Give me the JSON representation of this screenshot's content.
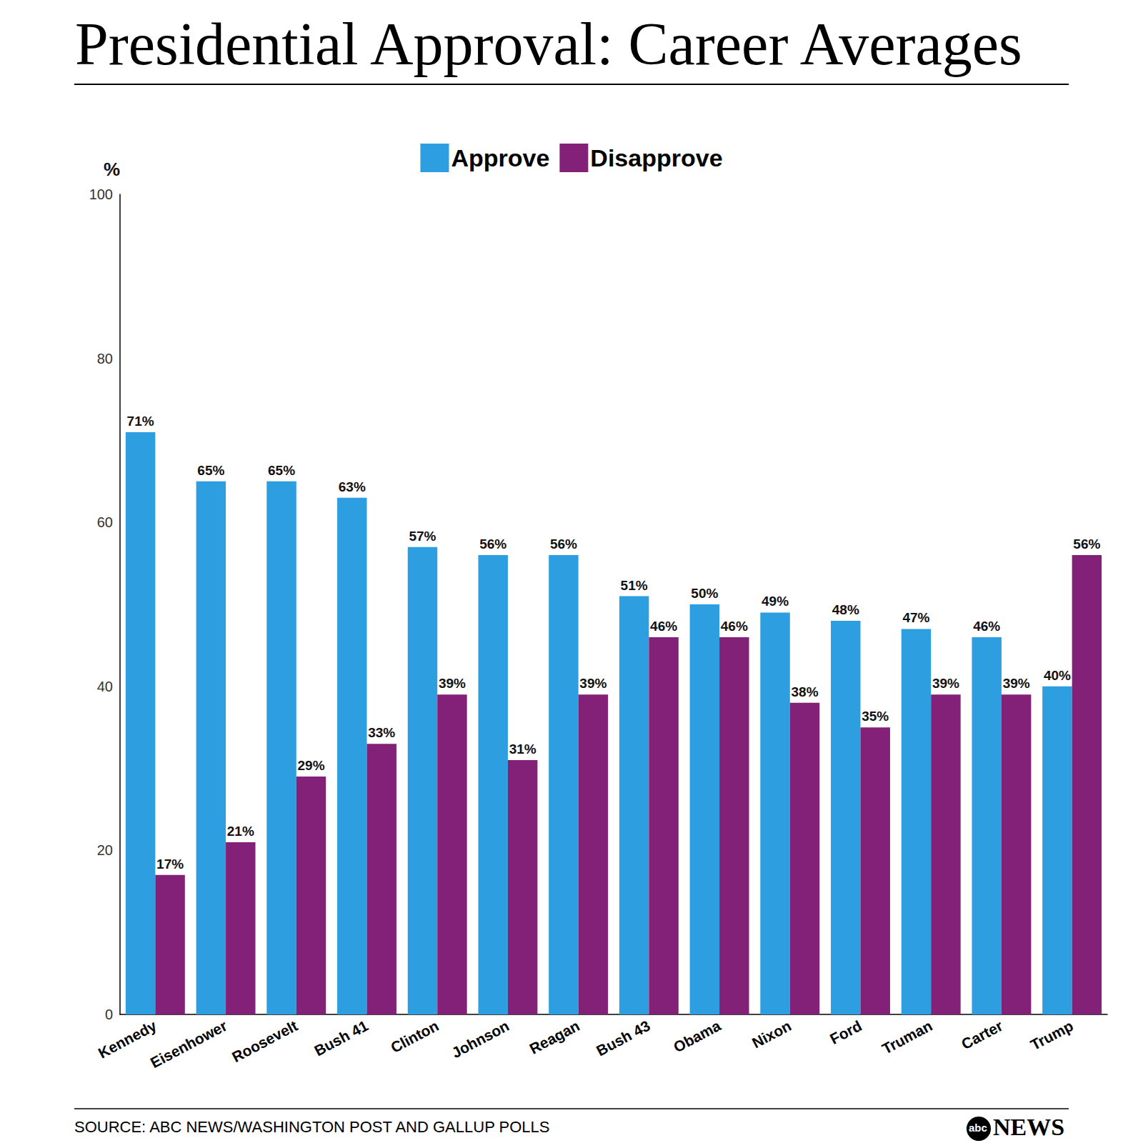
{
  "chart_data": {
    "type": "bar",
    "title": "Presidential Approval: Career Averages",
    "y_label": "%",
    "source": "SOURCE: ABC NEWS/WASHINGTON POST AND GALLUP POLLS",
    "logo_mark": "abc",
    "logo": "NEWS",
    "categories": [
      "Kennedy",
      "Eisenhower",
      "Roosevelt",
      "Bush 41",
      "Clinton",
      "Johnson",
      "Reagan",
      "Bush 43",
      "Obama",
      "Nixon",
      "Ford",
      "Truman",
      "Carter",
      "Trump"
    ],
    "series": [
      {
        "name": "Approve",
        "color": "#2d9ee0",
        "values": [
          71,
          65,
          65,
          63,
          57,
          56,
          56,
          51,
          50,
          49,
          48,
          47,
          46,
          40
        ],
        "value_labels": [
          "71%",
          "65%",
          "65%",
          "63%",
          "57%",
          "56%",
          "56%",
          "51%",
          "50%",
          "49%",
          "48%",
          "47%",
          "46%",
          "40%"
        ]
      },
      {
        "name": "Disapprove",
        "color": "#832077",
        "values": [
          17,
          21,
          29,
          33,
          39,
          31,
          39,
          46,
          46,
          38,
          35,
          39,
          39,
          56
        ],
        "value_labels": [
          "17%",
          "21%",
          "29%",
          "33%",
          "39%",
          "31%",
          "39%",
          "46%",
          "46%",
          "38%",
          "35%",
          "39%",
          "39%",
          "56%"
        ]
      }
    ],
    "ylim": [
      0,
      100
    ],
    "yticks": [
      0,
      20,
      40,
      60,
      80,
      100
    ],
    "grid": false,
    "legend": "top",
    "data_labels": true
  }
}
